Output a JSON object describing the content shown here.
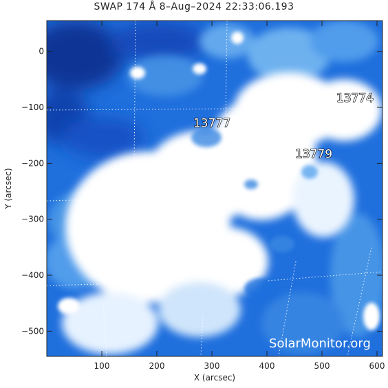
{
  "title": "SWAP 174 Å  8–Aug–2024 22:33:06.193",
  "xlabel": "X (arcsec)",
  "ylabel": "Y (arcsec)",
  "x_ticks": [
    {
      "value": 100,
      "label": "100"
    },
    {
      "value": 200,
      "label": "200"
    },
    {
      "value": 300,
      "label": "300"
    },
    {
      "value": 400,
      "label": "400"
    },
    {
      "value": 500,
      "label": "500"
    },
    {
      "value": 600,
      "label": "600"
    }
  ],
  "y_ticks": [
    {
      "value": 0,
      "label": "0"
    },
    {
      "value": -100,
      "label": "−100"
    },
    {
      "value": -200,
      "label": "−200"
    },
    {
      "value": -300,
      "label": "−300"
    },
    {
      "value": -400,
      "label": "−400"
    },
    {
      "value": -500,
      "label": "−500"
    }
  ],
  "active_regions": [
    {
      "label": "13777",
      "x": 300,
      "y": -135
    },
    {
      "label": "13779",
      "x": 485,
      "y": -190
    },
    {
      "label": "13774",
      "x": 560,
      "y": -90
    }
  ],
  "watermark": "SolarMonitor.org",
  "colors": {
    "dark": "#0a2a80",
    "mid": "#1c6fe0",
    "light": "#8fc4f5",
    "white": "#ffffff"
  }
}
